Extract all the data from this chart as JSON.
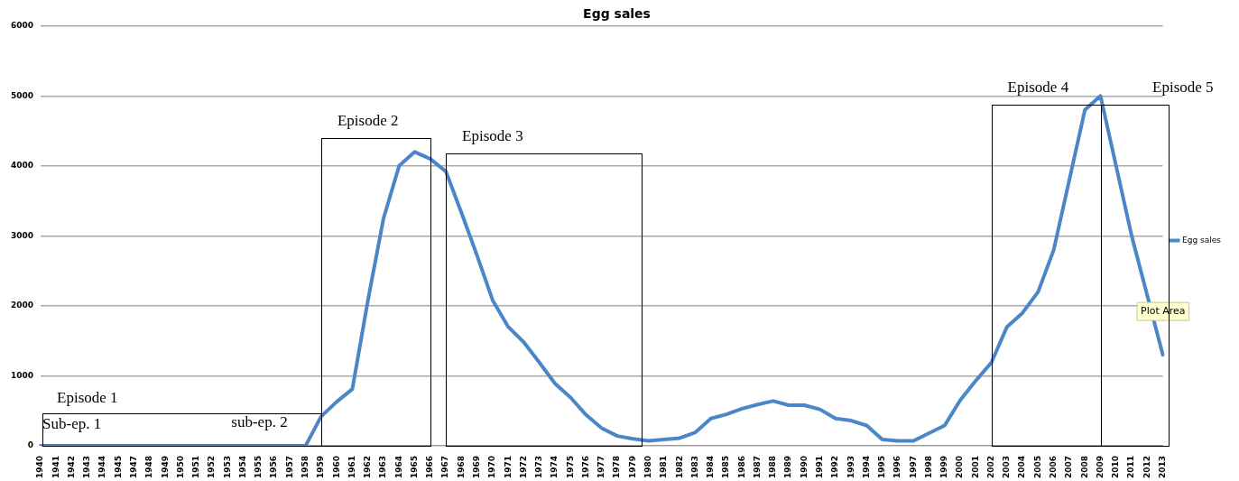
{
  "chart_data": {
    "type": "line",
    "title": "Egg sales",
    "categories": [
      "1940",
      "1941",
      "1942",
      "1943",
      "1944",
      "1945",
      "1947",
      "1948",
      "1949",
      "1950",
      "1951",
      "1952",
      "1953",
      "1954",
      "1955",
      "1956",
      "1957",
      "1958",
      "1959",
      "1960",
      "1961",
      "1962",
      "1963",
      "1964",
      "1965",
      "1966",
      "1967",
      "1968",
      "1969",
      "1970",
      "1971",
      "1972",
      "1973",
      "1974",
      "1975",
      "1976",
      "1977",
      "1978",
      "1979",
      "1980",
      "1981",
      "1982",
      "1983",
      "1984",
      "1985",
      "1986",
      "1987",
      "1988",
      "1989",
      "1990",
      "1991",
      "1992",
      "1993",
      "1994",
      "1995",
      "1996",
      "1997",
      "1998",
      "1999",
      "2000",
      "2001",
      "2002",
      "2003",
      "2004",
      "2005",
      "2006",
      "2007",
      "2008",
      "2009",
      "2010",
      "2011",
      "2012",
      "2013"
    ],
    "series": [
      {
        "name": "Egg sales",
        "color": "#4a86c8",
        "values": [
          0,
          0,
          0,
          0,
          0,
          0,
          0,
          0,
          0,
          0,
          0,
          0,
          0,
          0,
          0,
          0,
          0,
          0,
          420,
          630,
          810,
          2080,
          3250,
          4000,
          4200,
          4100,
          3920,
          3330,
          2720,
          2080,
          1700,
          1480,
          1190,
          890,
          690,
          440,
          250,
          140,
          100,
          70,
          90,
          110,
          190,
          390,
          450,
          530,
          590,
          640,
          580,
          580,
          520,
          390,
          360,
          290,
          90,
          70,
          70,
          180,
          290,
          650,
          930,
          1190,
          1700,
          1900,
          2200,
          2800,
          3800,
          4800,
          5000,
          4000,
          3000,
          2150,
          1300
        ]
      }
    ],
    "ylim": [
      0,
      6000
    ],
    "yticks": [
      0,
      1000,
      2000,
      3000,
      4000,
      5000,
      6000
    ],
    "grid": "y",
    "legend": "right",
    "marker": "none",
    "line_style": "solid",
    "annotations": [
      "Episode 1",
      "Episode 2",
      "Episode 3",
      "Episode 4",
      "Episode 5",
      "Sub-ep. 1",
      "sub-ep. 2",
      "Plot Area"
    ]
  }
}
